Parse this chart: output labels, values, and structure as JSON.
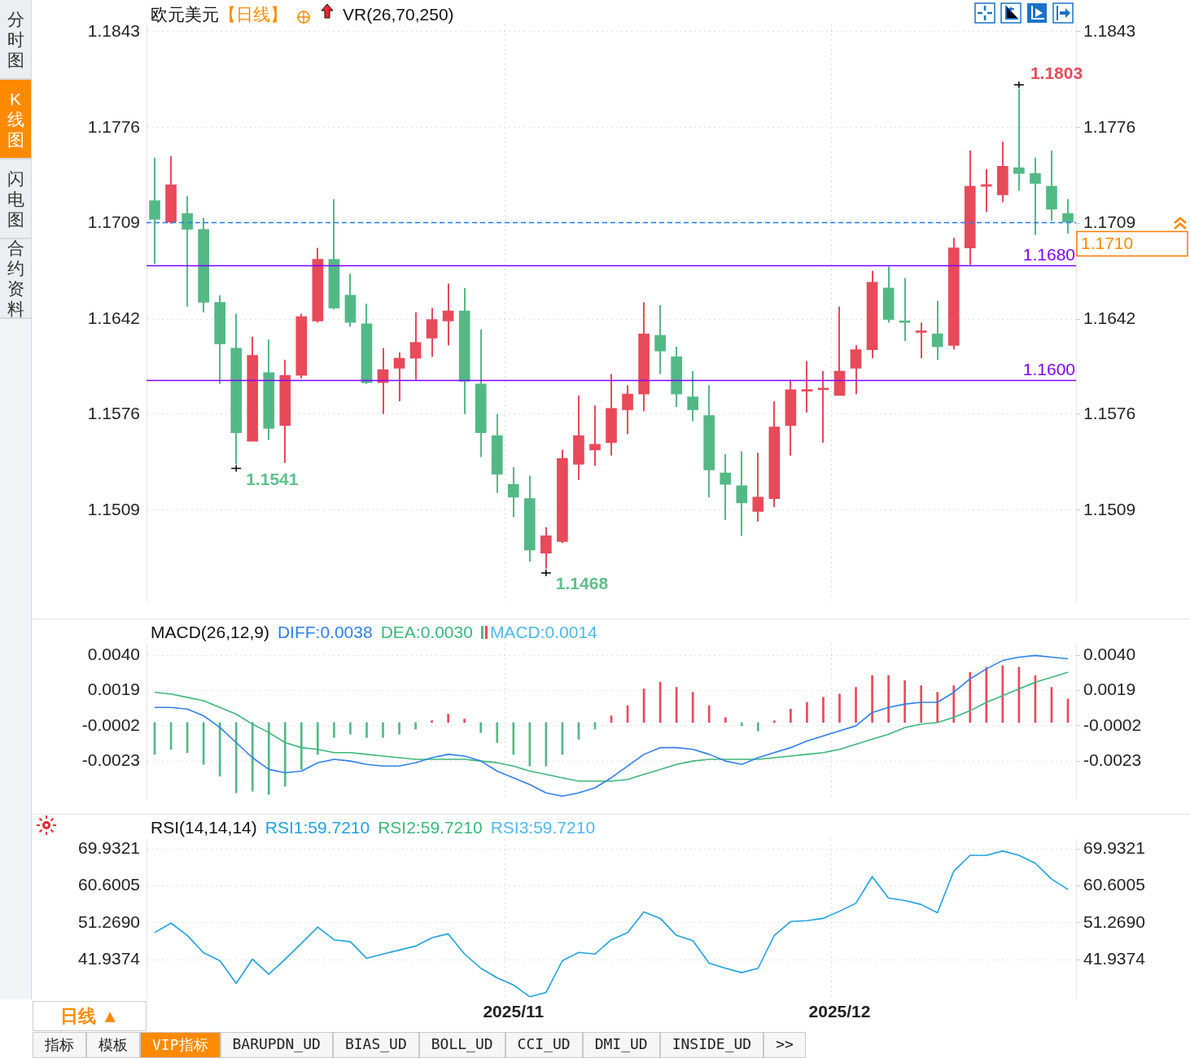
{
  "chart_data": [
    {
      "type": "candlestick",
      "title": "欧元美元",
      "subtitle": "【日线】",
      "categories": [
        null,
        null,
        null,
        null,
        null,
        null,
        null,
        null,
        null,
        null,
        null,
        null,
        null,
        null,
        null,
        null,
        null,
        null,
        null,
        null,
        null,
        null,
        "2025/11",
        null,
        null,
        null,
        null,
        null,
        null,
        null,
        null,
        null,
        null,
        null,
        null,
        null,
        null,
        null,
        null,
        null,
        null,
        null,
        "2025/12",
        null,
        null,
        null,
        null,
        null,
        null,
        null,
        null,
        null,
        null,
        null,
        null,
        null,
        null
      ],
      "ohlc": [
        [
          1.1725,
          1.1755,
          1.1681,
          1.1712
        ],
        [
          1.171,
          1.1756,
          1.1709,
          1.1736
        ],
        [
          1.1716,
          1.1728,
          1.1651,
          1.1705
        ],
        [
          1.1705,
          1.1713,
          1.1647,
          1.1654
        ],
        [
          1.1654,
          1.1659,
          1.1597,
          1.1625
        ],
        [
          1.1622,
          1.1646,
          1.1541,
          1.1563
        ],
        [
          1.1557,
          1.163,
          1.1557,
          1.1617
        ],
        [
          1.1605,
          1.1628,
          1.1558,
          1.1566
        ],
        [
          1.1568,
          1.1614,
          1.1542,
          1.1603
        ],
        [
          1.1603,
          1.1646,
          1.1601,
          1.1644
        ],
        [
          1.1641,
          1.1692,
          1.164,
          1.1684
        ],
        [
          1.1684,
          1.1726,
          1.1649,
          1.165
        ],
        [
          1.1659,
          1.1674,
          1.1637,
          1.164
        ],
        [
          1.1639,
          1.1653,
          1.1597,
          1.1598
        ],
        [
          1.1598,
          1.1622,
          1.1576,
          1.1607
        ],
        [
          1.1608,
          1.1619,
          1.1585,
          1.1615
        ],
        [
          1.1615,
          1.1647,
          1.16,
          1.1626
        ],
        [
          1.1629,
          1.165,
          1.1616,
          1.1642
        ],
        [
          1.1641,
          1.1667,
          1.1624,
          1.1648
        ],
        [
          1.1648,
          1.1664,
          1.1576,
          1.1599
        ],
        [
          1.1597,
          1.1635,
          1.1546,
          1.1563
        ],
        [
          1.1561,
          1.1576,
          1.1521,
          1.1534
        ],
        [
          1.1527,
          1.1539,
          1.1504,
          1.1518
        ],
        [
          1.1517,
          1.1533,
          1.1473,
          1.1481
        ],
        [
          1.1479,
          1.1497,
          1.1468,
          1.1491
        ],
        [
          1.1487,
          1.1551,
          1.1486,
          1.1545
        ],
        [
          1.1541,
          1.1589,
          1.153,
          1.1561
        ],
        [
          1.1551,
          1.1582,
          1.154,
          1.1555
        ],
        [
          1.1556,
          1.1604,
          1.1547,
          1.158
        ],
        [
          1.1579,
          1.1596,
          1.1562,
          1.159
        ],
        [
          1.159,
          1.1654,
          1.1578,
          1.1632
        ],
        [
          1.1631,
          1.1652,
          1.1604,
          1.162
        ],
        [
          1.1616,
          1.1623,
          1.1581,
          1.159
        ],
        [
          1.1588,
          1.1606,
          1.1571,
          1.1579
        ],
        [
          1.1575,
          1.1596,
          1.1518,
          1.1537
        ],
        [
          1.1535,
          1.1548,
          1.1502,
          1.1527
        ],
        [
          1.1526,
          1.155,
          1.1491,
          1.1514
        ],
        [
          1.1508,
          1.1549,
          1.1501,
          1.1518
        ],
        [
          1.1517,
          1.1585,
          1.1511,
          1.1567
        ],
        [
          1.1568,
          1.16,
          1.1547,
          1.1593
        ],
        [
          1.1592,
          1.1613,
          1.1577,
          1.1593
        ],
        [
          1.1593,
          1.1606,
          1.1556,
          1.1594
        ],
        [
          1.1589,
          1.1651,
          1.1589,
          1.1606
        ],
        [
          1.1608,
          1.1624,
          1.159,
          1.1621
        ],
        [
          1.1621,
          1.1676,
          1.1615,
          1.1668
        ],
        [
          1.1664,
          1.1679,
          1.164,
          1.1642
        ],
        [
          1.1641,
          1.1671,
          1.1627,
          1.164
        ],
        [
          1.1633,
          1.164,
          1.1615,
          1.1634
        ],
        [
          1.1632,
          1.1655,
          1.1614,
          1.1623
        ],
        [
          1.1624,
          1.1699,
          1.1621,
          1.1692
        ],
        [
          1.1692,
          1.176,
          1.168,
          1.1735
        ],
        [
          1.1735,
          1.1747,
          1.1717,
          1.1736
        ],
        [
          1.1729,
          1.1766,
          1.1724,
          1.1749
        ],
        [
          1.1748,
          1.1803,
          1.1732,
          1.1744
        ],
        [
          1.1744,
          1.1755,
          1.1701,
          1.1737
        ],
        [
          1.1735,
          1.176,
          1.1711,
          1.1719
        ],
        [
          1.1716,
          1.1726,
          1.1702,
          1.171
        ]
      ],
      "colors": [
        "#52b986",
        "#e84a5a",
        "#52b986",
        "#52b986",
        "#52b986",
        "#52b986",
        "#e84a5a",
        "#52b986",
        "#e84a5a",
        "#e84a5a",
        "#e84a5a",
        "#52b986",
        "#52b986",
        "#52b986",
        "#e84a5a",
        "#e84a5a",
        "#e84a5a",
        "#e84a5a",
        "#e84a5a",
        "#52b986",
        "#52b986",
        "#52b986",
        "#52b986",
        "#52b986",
        "#e84a5a",
        "#e84a5a",
        "#e84a5a",
        "#e84a5a",
        "#e84a5a",
        "#e84a5a",
        "#e84a5a",
        "#52b986",
        "#52b986",
        "#52b986",
        "#52b986",
        "#52b986",
        "#52b986",
        "#e84a5a",
        "#e84a5a",
        "#e84a5a",
        "#e84a5a",
        "#e84a5a",
        "#e84a5a",
        "#e84a5a",
        "#e84a5a",
        "#52b986",
        "#52b986",
        "#e84a5a",
        "#52b986",
        "#e84a5a",
        "#e84a5a",
        "#e84a5a",
        "#e84a5a",
        "#52b986",
        "#52b986",
        "#52b986",
        "#52b986"
      ],
      "ylim": [
        1.1445,
        1.1848
      ],
      "yticks": [
        1.1509,
        1.1576,
        1.1642,
        1.1709,
        1.1776,
        1.1843
      ],
      "y2lim": [
        1.1445,
        1.1848
      ],
      "y2ticks": [
        1.1509,
        1.1576,
        1.1642,
        1.1709,
        1.1776,
        1.1843
      ],
      "ref_lines": [
        {
          "axis": "y",
          "value": 1.168,
          "label": "1.1680",
          "color": "#8000ff"
        },
        {
          "axis": "y",
          "value": 1.16,
          "label": "1.1600",
          "color": "#8000ff"
        },
        {
          "axis": "y",
          "value": 1.171,
          "label": "1.1710",
          "color": "#1e7ef0",
          "line_style": "dashed"
        }
      ],
      "annotations": [
        "VR(26,70,250)",
        "1.1803",
        "1.1541",
        "1.1468"
      ],
      "grid": true,
      "tick_labels": "y"
    },
    {
      "type": "line",
      "title": "MACD(26,12,9)",
      "categories": [
        null,
        null,
        null,
        null,
        null,
        null,
        null,
        null,
        null,
        null,
        null,
        null,
        null,
        null,
        null,
        null,
        null,
        null,
        null,
        null,
        null,
        null,
        "2025/11",
        null,
        null,
        null,
        null,
        null,
        null,
        null,
        null,
        null,
        null,
        null,
        null,
        null,
        null,
        null,
        null,
        null,
        null,
        null,
        "2025/12",
        null,
        null,
        null,
        null,
        null,
        null,
        null,
        null,
        null,
        null,
        null,
        null,
        null,
        null
      ],
      "series": [
        {
          "name": "DIFF:0.0038",
          "type": "line",
          "color": "#2f80ed",
          "values": [
            0.0009,
            0.0009,
            0.0008,
            0.0004,
            -0.0003,
            -0.0012,
            -0.0021,
            -0.0028,
            -0.003,
            -0.0029,
            -0.0024,
            -0.0022,
            -0.0023,
            -0.0025,
            -0.0026,
            -0.0026,
            -0.0024,
            -0.0021,
            -0.0019,
            -0.002,
            -0.0023,
            -0.0029,
            -0.0033,
            -0.0037,
            -0.0042,
            -0.0044,
            -0.0042,
            -0.0039,
            -0.0033,
            -0.0026,
            -0.0019,
            -0.0015,
            -0.0015,
            -0.0016,
            -0.0019,
            -0.0023,
            -0.0025,
            -0.0021,
            -0.0018,
            -0.0015,
            -0.0011,
            -0.0008,
            -0.0005,
            -0.0002,
            0.0006,
            0.0009,
            0.0011,
            0.0012,
            0.0012,
            0.0018,
            0.0026,
            0.0032,
            0.0037,
            0.0039,
            0.004,
            0.0039,
            0.0038
          ]
        },
        {
          "name": "DEA:0.0030",
          "type": "line",
          "color": "#3cb878",
          "values": [
            0.0018,
            0.0017,
            0.0015,
            0.0013,
            0.0009,
            0.0005,
            -0.0001,
            -0.0006,
            -0.0012,
            -0.0015,
            -0.0016,
            -0.0018,
            -0.0018,
            -0.0019,
            -0.002,
            -0.0021,
            -0.0022,
            -0.0022,
            -0.0022,
            -0.0022,
            -0.0023,
            -0.0024,
            -0.0026,
            -0.0029,
            -0.0031,
            -0.0033,
            -0.0035,
            -0.0035,
            -0.0035,
            -0.0034,
            -0.0031,
            -0.0028,
            -0.0025,
            -0.0023,
            -0.0022,
            -0.0022,
            -0.0022,
            -0.0022,
            -0.0021,
            -0.002,
            -0.0019,
            -0.0018,
            -0.0016,
            -0.0013,
            -0.001,
            -0.0007,
            -0.0003,
            -0.0001,
            0.0,
            0.0003,
            0.0007,
            0.0012,
            0.0016,
            0.002,
            0.0024,
            0.0027,
            0.003
          ]
        },
        {
          "name": "MACD:0.0014",
          "type": "bar",
          "values": [
            -0.0019,
            -0.0016,
            -0.0018,
            -0.0025,
            -0.0032,
            -0.0042,
            -0.0041,
            -0.0043,
            -0.0038,
            -0.0028,
            -0.0019,
            -0.0009,
            -0.0007,
            -0.0009,
            -0.0009,
            -0.0007,
            -0.0004,
            0.0001,
            0.0005,
            0.0002,
            -0.0006,
            -0.0012,
            -0.0019,
            -0.0026,
            -0.0026,
            -0.0019,
            -0.001,
            -0.0004,
            0.0004,
            0.001,
            0.002,
            0.0024,
            0.0021,
            0.0018,
            0.001,
            0.0003,
            -0.0002,
            -0.0005,
            0.0001,
            0.0008,
            0.0012,
            0.0015,
            0.0017,
            0.0021,
            0.0028,
            0.0028,
            0.0025,
            0.0022,
            0.0018,
            0.0022,
            0.003,
            0.0033,
            0.0034,
            0.0033,
            0.0028,
            0.0021,
            0.0014
          ],
          "colors": [
            "#52b986",
            "#52b986",
            "#52b986",
            "#52b986",
            "#52b986",
            "#52b986",
            "#52b986",
            "#52b986",
            "#52b986",
            "#52b986",
            "#52b986",
            "#52b986",
            "#52b986",
            "#52b986",
            "#52b986",
            "#52b986",
            "#52b986",
            "#e84a5a",
            "#e84a5a",
            "#e84a5a",
            "#52b986",
            "#52b986",
            "#52b986",
            "#52b986",
            "#52b986",
            "#52b986",
            "#52b986",
            "#52b986",
            "#e84a5a",
            "#e84a5a",
            "#e84a5a",
            "#e84a5a",
            "#e84a5a",
            "#e84a5a",
            "#e84a5a",
            "#e84a5a",
            "#52b986",
            "#52b986",
            "#e84a5a",
            "#e84a5a",
            "#e84a5a",
            "#e84a5a",
            "#e84a5a",
            "#e84a5a",
            "#e84a5a",
            "#e84a5a",
            "#e84a5a",
            "#e84a5a",
            "#e84a5a",
            "#e84a5a",
            "#e84a5a",
            "#e84a5a",
            "#e84a5a",
            "#e84a5a",
            "#e84a5a",
            "#e84a5a",
            "#e84a5a"
          ]
        }
      ],
      "ylim": [
        -0.0045,
        0.0047
      ],
      "yticks": [
        -0.0023,
        -0.0002,
        0.0019,
        {
          "value": 0.004,
          "label": "0.0040"
        }
      ],
      "y2lim": [
        -0.0045,
        0.0047
      ],
      "y2ticks": [
        -0.0023,
        -0.0002,
        0.0019,
        {
          "value": 0.004,
          "label": "0.0040"
        }
      ],
      "legend": "top left",
      "grid": true,
      "tick_labels": "y"
    },
    {
      "type": "line",
      "title": "RSI(14,14,14)",
      "categories": [
        null,
        null,
        null,
        null,
        null,
        null,
        null,
        null,
        null,
        null,
        null,
        null,
        null,
        null,
        null,
        null,
        null,
        null,
        null,
        null,
        null,
        null,
        "2025/11",
        null,
        null,
        null,
        null,
        null,
        null,
        null,
        null,
        null,
        null,
        null,
        null,
        null,
        null,
        null,
        null,
        null,
        null,
        null,
        "2025/12",
        null,
        null,
        null,
        null,
        null,
        null,
        null,
        null,
        null,
        null,
        null,
        null,
        null,
        null
      ],
      "series": [
        {
          "name": "RSI1:59.7210",
          "color": "#1fa2e0",
          "values": [
            48.8,
            51.2,
            48.1,
            43.7,
            41.7,
            36.0,
            42.1,
            38.3,
            42.1,
            46.1,
            50.2,
            47.0,
            46.5,
            42.3,
            43.4,
            44.4,
            45.4,
            47.5,
            48.5,
            43.4,
            39.8,
            37.4,
            35.6,
            32.6,
            33.7,
            41.7,
            43.8,
            43.4,
            47.0,
            48.8,
            54.0,
            52.4,
            48.1,
            46.8,
            41.1,
            39.8,
            38.7,
            39.8,
            48.1,
            51.6,
            51.8,
            52.4,
            54.2,
            56.2,
            62.9,
            57.5,
            56.9,
            55.9,
            53.8,
            64.3,
            68.3,
            68.3,
            69.4,
            68.3,
            66.3,
            62.3,
            59.7
          ]
        }
      ],
      "annotations": [
        "RSI2:59.7210",
        "RSI3:59.7210"
      ],
      "ylim": [
        32.4,
        72.4
      ],
      "yticks": [
        41.9374,
        {
          "value": 51.269,
          "label": "51.2690"
        },
        60.6005,
        69.9321
      ],
      "y2lim": [
        32.4,
        72.4
      ],
      "y2ticks": [
        41.9374,
        {
          "value": 51.269,
          "label": "51.2690"
        },
        60.6005,
        69.9321
      ],
      "legend": "top left",
      "grid": true
    },
    {
      "type": "other",
      "annotations": [
        "分时图",
        "K线图",
        "闪电图",
        "合约资料"
      ]
    },
    {
      "type": "other",
      "annotations": [
        "日线 ▲",
        "指标",
        "模板",
        "VIP指标",
        "BARUPDN_UD",
        "BIAS_UD",
        "BOLL_UD",
        "CCI_UD",
        "DMI_UD",
        "INSIDE_UD",
        ">>"
      ]
    }
  ]
}
